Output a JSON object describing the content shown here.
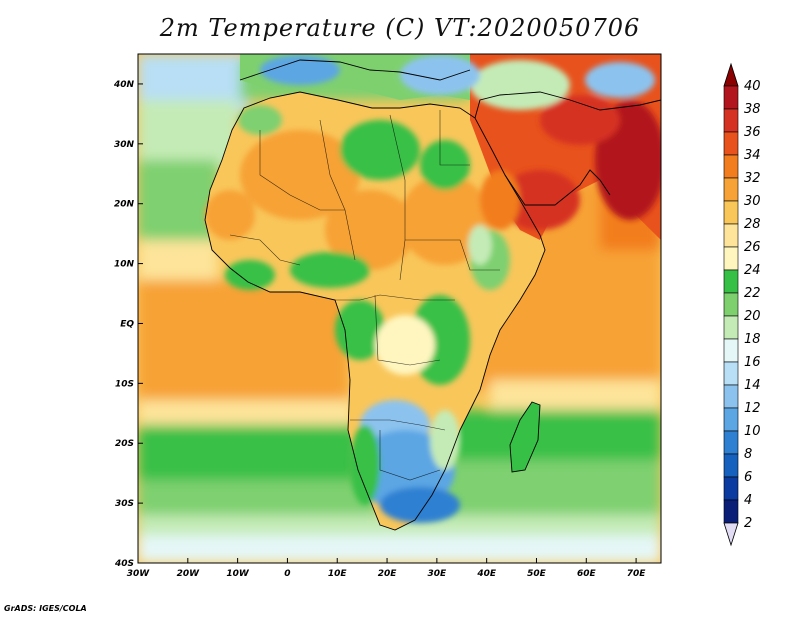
{
  "title": "2m Temperature (C) VT:2020050706",
  "credit": "GrADS: IGES/COLA",
  "map": {
    "region": "Africa and Arabian Peninsula",
    "lon_range": [
      -30,
      75
    ],
    "lat_range": [
      -40,
      45
    ],
    "x_ticks": [
      "30W",
      "20W",
      "10W",
      "0",
      "10E",
      "20E",
      "30E",
      "40E",
      "50E",
      "60E",
      "70E"
    ],
    "y_ticks": [
      "40N",
      "30N",
      "20N",
      "10N",
      "EQ",
      "10S",
      "20S",
      "30S",
      "40S"
    ]
  },
  "colorbar": {
    "labels": [
      "40",
      "38",
      "36",
      "34",
      "32",
      "30",
      "28",
      "26",
      "24",
      "22",
      "20",
      "18",
      "16",
      "14",
      "12",
      "10",
      "8",
      "6",
      "4",
      "2"
    ],
    "colors": [
      "#8b0000",
      "#b2151d",
      "#d63224",
      "#e8521c",
      "#f27d1f",
      "#f7a236",
      "#f9c65a",
      "#fde49a",
      "#fff6bf",
      "#37c046",
      "#7ed06f",
      "#c4ebb6",
      "#e5f7f7",
      "#b8dff5",
      "#8cc3ee",
      "#5ca6e4",
      "#2f80d2",
      "#1660be",
      "#0b3aa0",
      "#0a1e78"
    ],
    "low_cap_color": "#e3dcf5"
  }
}
